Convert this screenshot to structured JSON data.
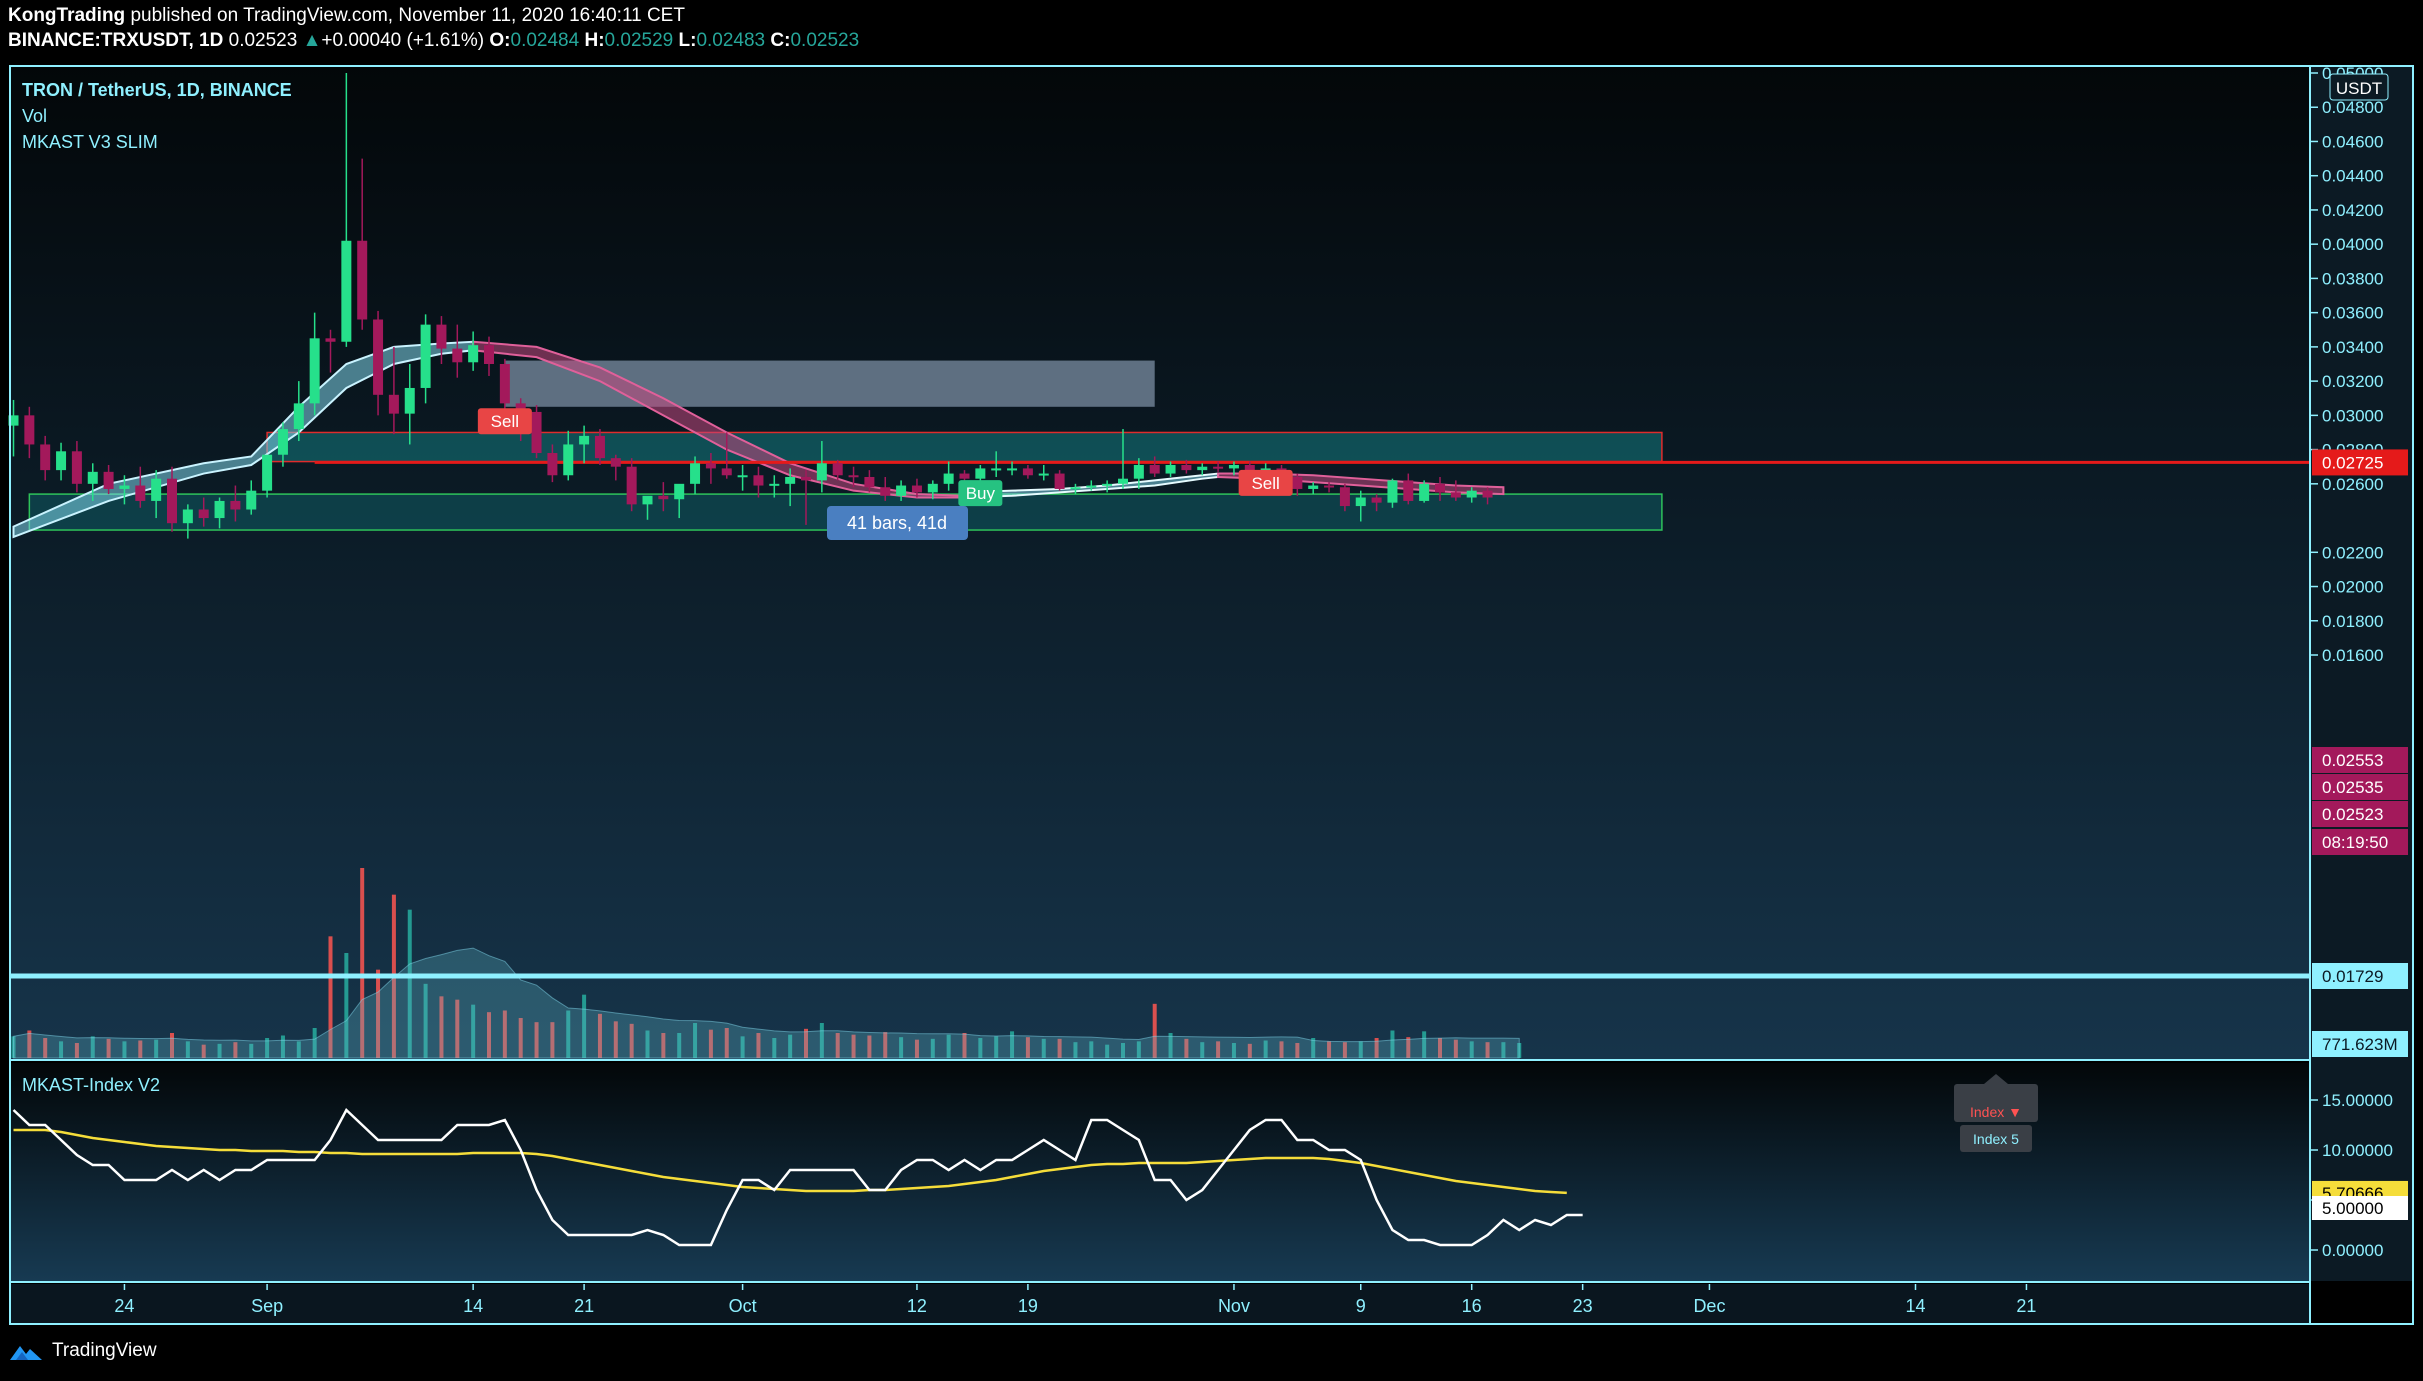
{
  "header": {
    "publisher": "KongTrading",
    "published_text": "published on TradingView.com, November 11, 2020 16:40:11 CET",
    "symbol": "BINANCE:TRXUSDT, 1D",
    "last": "0.02523",
    "change": "+0.00040 (+1.61%)",
    "o_label": "O:",
    "o": "0.02484",
    "h_label": "H:",
    "h": "0.02529",
    "l_label": "L:",
    "l": "0.02483",
    "c_label": "C:",
    "c": "0.02523"
  },
  "legend": {
    "title": "TRON / TetherUS, 1D, BINANCE",
    "vol": "Vol",
    "indicator": "MKAST V3 SLIM",
    "sub_indicator": "MKAST-Index V2"
  },
  "footer": {
    "brand": "TradingView"
  },
  "measure_label": "41 bars, 41d",
  "signals": {
    "sell": "Sell",
    "buy": "Buy"
  },
  "index_widget": {
    "top": "Index ▼",
    "bottom": "Index 5"
  },
  "colors": {
    "up": "#26e08b",
    "down": "#a3195b",
    "panel_border": "#8ff0ff",
    "ribbon_up": "#7fd6ea",
    "ribbon_down": "#c2477e",
    "line_red": "#e51a1a",
    "index_line": "#ffffff",
    "index_ma": "#f5dd3a"
  },
  "chart_data": {
    "type": "candlestick",
    "symbol": "TRXUSDT",
    "timeframe": "1D",
    "price_axis": {
      "unit": "USDT",
      "ticks": [
        "0.05000",
        "0.04800",
        "0.04600",
        "0.04400",
        "0.04200",
        "0.04000",
        "0.03800",
        "0.03600",
        "0.03400",
        "0.03200",
        "0.03000",
        "0.02800",
        "0.02600",
        "0.02200",
        "0.02000",
        "0.01800",
        "0.01600"
      ],
      "ylim": [
        0.0145,
        0.051
      ]
    },
    "price_labels": [
      {
        "text": "0.02725",
        "kind": "line"
      },
      {
        "text": "0.02553",
        "kind": "ma"
      },
      {
        "text": "0.02535",
        "kind": "ma"
      },
      {
        "text": "0.02523",
        "kind": "last"
      },
      {
        "text": "08:19:50",
        "kind": "countdown"
      },
      {
        "text": "0.01729",
        "kind": "line2"
      },
      {
        "text": "771.623M",
        "kind": "vol"
      }
    ],
    "x_axis": {
      "labels": [
        {
          "text": "24",
          "day": -8
        },
        {
          "text": "Sep",
          "day": 1
        },
        {
          "text": "14",
          "day": 14
        },
        {
          "text": "21",
          "day": 21
        },
        {
          "text": "Oct",
          "day": 31
        },
        {
          "text": "12",
          "day": 42
        },
        {
          "text": "19",
          "day": 49
        },
        {
          "text": "Nov",
          "day": 62
        },
        {
          "text": "9",
          "day": 70
        },
        {
          "text": "16",
          "day": 77
        },
        {
          "text": "23",
          "day": 84
        },
        {
          "text": "Dec",
          "day": 92
        },
        {
          "text": "14",
          "day": 105
        },
        {
          "text": "21",
          "day": 112
        }
      ]
    },
    "zones": [
      {
        "name": "upper-gray",
        "from_day": 16,
        "to_day": 57,
        "y1": 0.0332,
        "y2": 0.0305
      },
      {
        "name": "resistance",
        "from_day": 1,
        "to_day": 89,
        "y1": 0.029,
        "y2": 0.0273
      },
      {
        "name": "support",
        "from_day": -14,
        "to_day": 89,
        "y1": 0.0254,
        "y2": 0.0233
      }
    ],
    "hlines": [
      {
        "value": 0.02725,
        "from_day": 4
      },
      {
        "value": 0.01729,
        "from_day": -15
      }
    ],
    "candles": [
      [
        0.0294,
        0.0309,
        0.0276,
        0.03
      ],
      [
        0.03,
        0.0305,
        0.0275,
        0.0283
      ],
      [
        0.0283,
        0.0288,
        0.0262,
        0.0268
      ],
      [
        0.0268,
        0.0284,
        0.0262,
        0.0279
      ],
      [
        0.0279,
        0.0285,
        0.0255,
        0.026
      ],
      [
        0.026,
        0.0272,
        0.025,
        0.0267
      ],
      [
        0.0267,
        0.0271,
        0.0254,
        0.0257
      ],
      [
        0.0257,
        0.0265,
        0.0248,
        0.0259
      ],
      [
        0.0259,
        0.027,
        0.0246,
        0.025
      ],
      [
        0.025,
        0.0268,
        0.024,
        0.0263
      ],
      [
        0.0263,
        0.027,
        0.0232,
        0.0237
      ],
      [
        0.0237,
        0.0248,
        0.0228,
        0.0245
      ],
      [
        0.0245,
        0.0252,
        0.0235,
        0.024
      ],
      [
        0.024,
        0.0252,
        0.0234,
        0.025
      ],
      [
        0.025,
        0.0259,
        0.0238,
        0.0245
      ],
      [
        0.0245,
        0.0262,
        0.0242,
        0.0256
      ],
      [
        0.0256,
        0.0275,
        0.0252,
        0.0277
      ],
      [
        0.0277,
        0.0296,
        0.027,
        0.0292
      ],
      [
        0.0292,
        0.032,
        0.0285,
        0.0307
      ],
      [
        0.0307,
        0.036,
        0.03,
        0.0345
      ],
      [
        0.0345,
        0.035,
        0.0325,
        0.0343
      ],
      [
        0.0343,
        0.05,
        0.034,
        0.0402
      ],
      [
        0.0402,
        0.045,
        0.035,
        0.0356
      ],
      [
        0.0356,
        0.0361,
        0.03,
        0.0312
      ],
      [
        0.0312,
        0.034,
        0.0289,
        0.0301
      ],
      [
        0.0301,
        0.033,
        0.0283,
        0.0316
      ],
      [
        0.0316,
        0.0359,
        0.0307,
        0.0353
      ],
      [
        0.0353,
        0.0358,
        0.033,
        0.0339
      ],
      [
        0.0339,
        0.0353,
        0.0322,
        0.0331
      ],
      [
        0.0331,
        0.0349,
        0.0326,
        0.0341
      ],
      [
        0.0341,
        0.0346,
        0.0323,
        0.033
      ],
      [
        0.033,
        0.0333,
        0.0301,
        0.0307
      ],
      [
        0.0307,
        0.031,
        0.0285,
        0.0302
      ],
      [
        0.0302,
        0.0306,
        0.0275,
        0.0278
      ],
      [
        0.0278,
        0.0283,
        0.0261,
        0.0265
      ],
      [
        0.0265,
        0.0291,
        0.0262,
        0.0283
      ],
      [
        0.0283,
        0.0294,
        0.0272,
        0.0288
      ],
      [
        0.0288,
        0.0292,
        0.0271,
        0.0275
      ],
      [
        0.0275,
        0.0277,
        0.0262,
        0.027
      ],
      [
        0.027,
        0.0275,
        0.0244,
        0.0248
      ],
      [
        0.0248,
        0.0252,
        0.0239,
        0.0253
      ],
      [
        0.0253,
        0.0261,
        0.0244,
        0.0251
      ],
      [
        0.0251,
        0.0258,
        0.024,
        0.026
      ],
      [
        0.026,
        0.0276,
        0.0254,
        0.0272
      ],
      [
        0.0272,
        0.0278,
        0.026,
        0.0269
      ],
      [
        0.0269,
        0.029,
        0.0263,
        0.0265
      ],
      [
        0.0265,
        0.0271,
        0.0256,
        0.0265
      ],
      [
        0.0265,
        0.027,
        0.0252,
        0.0259
      ],
      [
        0.0259,
        0.0265,
        0.0252,
        0.026
      ],
      [
        0.026,
        0.0269,
        0.0247,
        0.0264
      ],
      [
        0.0264,
        0.0268,
        0.0236,
        0.0262
      ],
      [
        0.0262,
        0.0285,
        0.0255,
        0.0272
      ],
      [
        0.0272,
        0.0274,
        0.0262,
        0.0265
      ],
      [
        0.0265,
        0.027,
        0.0258,
        0.0264
      ],
      [
        0.0264,
        0.0268,
        0.0255,
        0.0258
      ],
      [
        0.0258,
        0.0264,
        0.025,
        0.0253
      ],
      [
        0.0253,
        0.0262,
        0.025,
        0.0259
      ],
      [
        0.0259,
        0.0263,
        0.0252,
        0.0255
      ],
      [
        0.0255,
        0.0262,
        0.0251,
        0.026
      ],
      [
        0.026,
        0.0273,
        0.0256,
        0.0266
      ],
      [
        0.0266,
        0.0268,
        0.0258,
        0.0263
      ],
      [
        0.0263,
        0.0271,
        0.0258,
        0.0269
      ],
      [
        0.0269,
        0.0279,
        0.0264,
        0.0269
      ],
      [
        0.0269,
        0.0273,
        0.0265,
        0.0269
      ],
      [
        0.0269,
        0.0271,
        0.0263,
        0.0265
      ],
      [
        0.0265,
        0.0271,
        0.0262,
        0.0266
      ],
      [
        0.0266,
        0.0268,
        0.0256,
        0.0257
      ],
      [
        0.0257,
        0.026,
        0.0254,
        0.0258
      ],
      [
        0.0258,
        0.0262,
        0.0256,
        0.0259
      ],
      [
        0.0259,
        0.0262,
        0.0255,
        0.026
      ],
      [
        0.026,
        0.0292,
        0.0257,
        0.0263
      ],
      [
        0.0263,
        0.0275,
        0.0257,
        0.0271
      ],
      [
        0.0271,
        0.0276,
        0.0264,
        0.0266
      ],
      [
        0.0266,
        0.0273,
        0.0264,
        0.0271
      ],
      [
        0.0271,
        0.0274,
        0.0266,
        0.0268
      ],
      [
        0.0268,
        0.0272,
        0.0265,
        0.027
      ],
      [
        0.027,
        0.0273,
        0.0267,
        0.0269
      ],
      [
        0.0269,
        0.0273,
        0.0265,
        0.0271
      ],
      [
        0.0271,
        0.0273,
        0.0266,
        0.0268
      ],
      [
        0.0268,
        0.0272,
        0.0264,
        0.0269
      ],
      [
        0.0269,
        0.0271,
        0.0262,
        0.0264
      ],
      [
        0.0264,
        0.0266,
        0.0253,
        0.0257
      ],
      [
        0.0257,
        0.0261,
        0.0254,
        0.0259
      ],
      [
        0.0259,
        0.0261,
        0.0255,
        0.0258
      ],
      [
        0.0258,
        0.026,
        0.0244,
        0.0247
      ],
      [
        0.0247,
        0.0256,
        0.0238,
        0.0252
      ],
      [
        0.0252,
        0.0254,
        0.0244,
        0.0249
      ],
      [
        0.0249,
        0.0263,
        0.0246,
        0.0262
      ],
      [
        0.0262,
        0.0266,
        0.0248,
        0.025
      ],
      [
        0.025,
        0.0262,
        0.0249,
        0.026
      ],
      [
        0.026,
        0.0264,
        0.025,
        0.0255
      ],
      [
        0.0255,
        0.0262,
        0.025,
        0.0252
      ],
      [
        0.0252,
        0.0258,
        0.0249,
        0.0256
      ],
      [
        0.0256,
        0.0258,
        0.0248,
        0.0252
      ]
    ],
    "candles_start_day": -15,
    "volume": {
      "ylim": [
        0,
        2400
      ],
      "values": [
        260,
        330,
        240,
        200,
        180,
        260,
        230,
        200,
        210,
        220,
        300,
        200,
        160,
        170,
        190,
        170,
        240,
        270,
        200,
        360,
        1460,
        1260,
        2700,
        1060,
        1960,
        1780,
        890,
        740,
        700,
        640,
        550,
        570,
        480,
        430,
        430,
        570,
        760,
        530,
        440,
        410,
        330,
        300,
        300,
        420,
        340,
        360,
        260,
        300,
        240,
        280,
        350,
        420,
        300,
        280,
        270,
        310,
        250,
        220,
        230,
        280,
        300,
        240,
        260,
        320,
        250,
        230,
        230,
        190,
        200,
        160,
        180,
        200,
        650,
        300,
        230,
        190,
        200,
        180,
        170,
        210,
        200,
        180,
        240,
        200,
        190,
        200,
        240,
        330,
        250,
        320,
        240,
        220,
        200,
        190,
        190,
        180
      ]
    },
    "index_series": {
      "ylim": [
        -1.5,
        16.5
      ],
      "ticks": [
        "15.00000",
        "10.00000",
        "5.00000",
        "0.00000"
      ],
      "label_index": "5.70666",
      "label_value": "5.00000",
      "index": [
        14,
        12.5,
        12.5,
        11,
        9.5,
        8.5,
        8.5,
        7,
        7,
        7,
        8,
        7,
        8,
        7,
        8,
        8,
        9,
        9,
        9,
        9,
        11,
        14,
        12.5,
        11,
        11,
        11,
        11,
        11,
        12.5,
        12.5,
        12.5,
        13,
        10,
        6,
        3,
        1.5,
        1.5,
        1.5,
        1.5,
        1.5,
        2,
        1.5,
        0.5,
        0.5,
        0.5,
        4,
        7,
        7,
        6,
        8,
        8,
        8,
        8,
        8,
        6,
        6,
        8,
        9,
        9,
        8,
        9,
        8,
        9,
        9,
        10,
        11,
        10,
        9,
        13,
        13,
        12,
        11,
        7,
        7,
        5,
        6,
        8,
        10,
        12,
        13,
        13,
        11,
        11,
        10,
        10,
        9,
        5,
        2,
        1,
        1,
        0.5,
        0.5,
        0.5,
        1.5,
        3,
        2,
        3,
        2.5,
        3.5,
        3.5
      ],
      "ma": [
        12,
        12,
        12,
        11.8,
        11.5,
        11.2,
        11,
        10.8,
        10.6,
        10.4,
        10.3,
        10.2,
        10.1,
        10,
        10,
        9.9,
        9.9,
        9.9,
        9.8,
        9.8,
        9.7,
        9.7,
        9.6,
        9.6,
        9.6,
        9.6,
        9.6,
        9.6,
        9.6,
        9.7,
        9.7,
        9.7,
        9.7,
        9.6,
        9.4,
        9.1,
        8.8,
        8.5,
        8.2,
        7.9,
        7.6,
        7.3,
        7.1,
        6.9,
        6.7,
        6.5,
        6.3,
        6.2,
        6.1,
        6,
        5.9,
        5.9,
        5.9,
        5.9,
        6,
        6,
        6.1,
        6.2,
        6.3,
        6.4,
        6.6,
        6.8,
        7,
        7.3,
        7.6,
        7.9,
        8.1,
        8.3,
        8.5,
        8.6,
        8.6,
        8.7,
        8.7,
        8.7,
        8.7,
        8.8,
        8.9,
        9,
        9.1,
        9.2,
        9.2,
        9.2,
        9.2,
        9.1,
        8.9,
        8.7,
        8.4,
        8.1,
        7.8,
        7.5,
        7.2,
        6.9,
        6.7,
        6.5,
        6.3,
        6.1,
        5.9,
        5.8,
        5.71
      ]
    },
    "signals": [
      {
        "text": "Sell",
        "day": 16,
        "price": 0.0296
      },
      {
        "text": "Buy",
        "day": 46,
        "price": 0.0254
      },
      {
        "text": "Sell",
        "day": 64,
        "price": 0.026
      }
    ],
    "ribbon": {
      "up1": {
        "day": -15,
        "days": [
          -15,
          -9,
          -3,
          0,
          3,
          6,
          9,
          12,
          14
        ],
        "hi": [
          0.0235,
          0.026,
          0.0272,
          0.0276,
          0.0305,
          0.033,
          0.034,
          0.0342,
          0.0343
        ],
        "lo": [
          0.0229,
          0.025,
          0.0266,
          0.0271,
          0.029,
          0.0316,
          0.033,
          0.0336,
          0.0338
        ]
      },
      "down1": {
        "days": [
          14,
          18,
          22,
          26,
          30,
          34,
          38,
          42,
          45
        ],
        "hi": [
          0.0343,
          0.034,
          0.0328,
          0.031,
          0.029,
          0.0272,
          0.026,
          0.0254,
          0.0253
        ],
        "lo": [
          0.0338,
          0.0334,
          0.032,
          0.03,
          0.028,
          0.0265,
          0.0256,
          0.0252,
          0.0252
        ]
      },
      "up2": {
        "days": [
          45,
          48,
          51,
          54,
          57,
          60,
          61
        ],
        "hi": [
          0.0255,
          0.0256,
          0.0257,
          0.0259,
          0.0262,
          0.0265,
          0.0266
        ],
        "lo": [
          0.0252,
          0.0253,
          0.0255,
          0.0257,
          0.0259,
          0.0263,
          0.0264
        ]
      },
      "down2": {
        "days": [
          61,
          64,
          67,
          70,
          73,
          76,
          79
        ],
        "hi": [
          0.0266,
          0.0266,
          0.0265,
          0.0263,
          0.0261,
          0.0259,
          0.0258
        ],
        "lo": [
          0.0264,
          0.0263,
          0.0261,
          0.0259,
          0.0257,
          0.0255,
          0.0254
        ]
      }
    }
  }
}
